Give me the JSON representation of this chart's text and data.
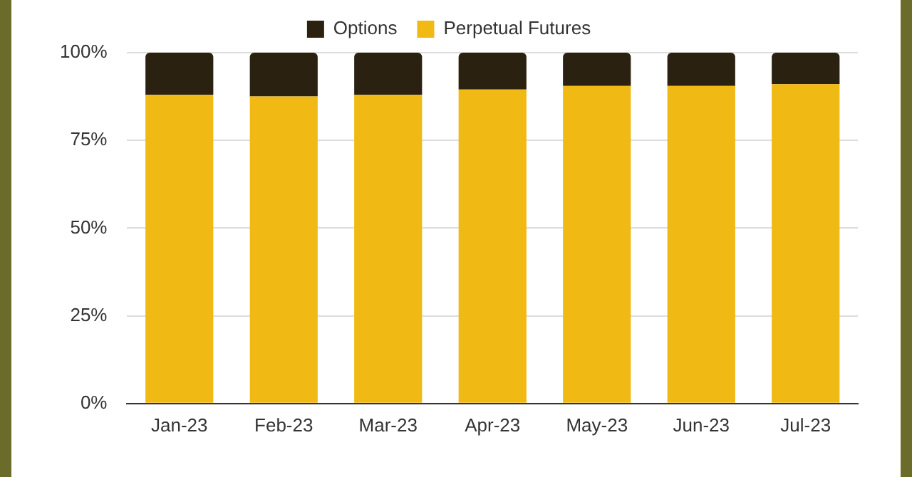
{
  "chart_data": {
    "type": "bar",
    "stacked": true,
    "categories": [
      "Jan-23",
      "Feb-23",
      "Mar-23",
      "Apr-23",
      "May-23",
      "Jun-23",
      "Jul-23"
    ],
    "series": [
      {
        "name": "Perpetual Futures",
        "color": "#f0b913",
        "values": [
          88,
          87.5,
          88,
          89.5,
          90.5,
          90.5,
          91
        ]
      },
      {
        "name": "Options",
        "color": "#2b2110",
        "values": [
          12,
          12.5,
          12,
          10.5,
          9.5,
          9.5,
          9
        ]
      }
    ],
    "ylim": [
      0,
      100
    ],
    "yticks": [
      {
        "value": 0,
        "label": "0%"
      },
      {
        "value": 25,
        "label": "25%"
      },
      {
        "value": 50,
        "label": "50%"
      },
      {
        "value": 75,
        "label": "75%"
      },
      {
        "value": 100,
        "label": "100%"
      }
    ],
    "grid": "y",
    "legend": "top"
  }
}
